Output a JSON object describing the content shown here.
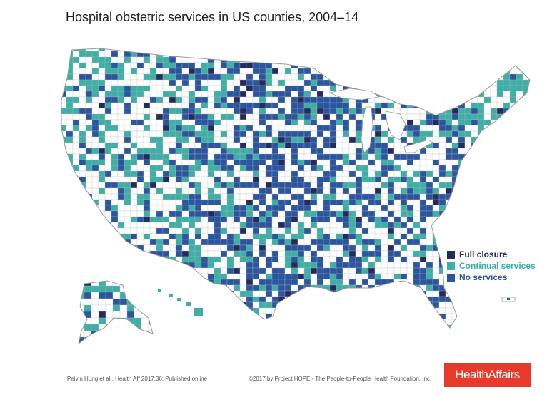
{
  "title": "Hospital obstetric services in US counties, 2004–14",
  "legend": {
    "items": [
      {
        "label": "Full closure",
        "color": "#262b5e",
        "text_color": "#262b5e"
      },
      {
        "label": "Continual services",
        "color": "#3dafa6",
        "text_color": "#3dafa6"
      },
      {
        "label": "No services",
        "color": "#2c55a0",
        "text_color": "#2c55a0"
      }
    ]
  },
  "colors": {
    "full_closure": "#262b5e",
    "continual_services": "#3dafa6",
    "no_services": "#2c55a0",
    "other": "#ffffff",
    "border": "#bbbbbb"
  },
  "footer": {
    "citation": "Peiyin Hung et al., Health Aff 2017;36: Published online",
    "copyright": "©2017 by Project HOPE - The People-to-People Health Foundation, Inc.",
    "logo": "HealthAffairs"
  }
}
